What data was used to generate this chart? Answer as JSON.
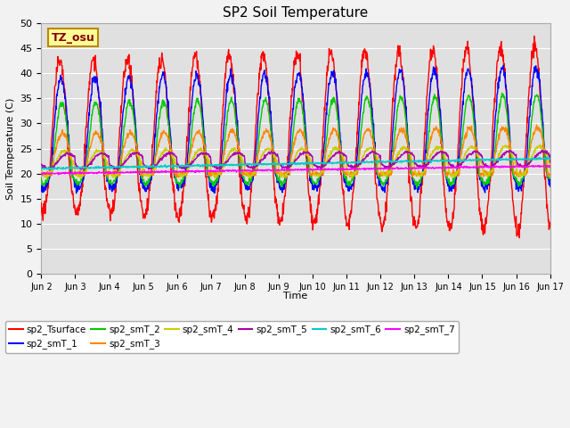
{
  "title": "SP2 Soil Temperature",
  "xlabel": "Time",
  "ylabel": "Soil Temperature (C)",
  "ylim": [
    0,
    50
  ],
  "xlim": [
    0,
    360
  ],
  "xtick_labels": [
    "Jun 2",
    "Jun 3",
    "Jun 4",
    "Jun 5",
    "Jun 6",
    "Jun 7",
    "Jun 8",
    "Jun 9",
    "Jun 10",
    "Jun 11",
    "Jun 12",
    "Jun 13",
    "Jun 14",
    "Jun 15",
    "Jun 16",
    "Jun 17"
  ],
  "annotation_text": "TZ_osu",
  "annotation_box_color": "#FFFF99",
  "annotation_box_edge": "#BB8800",
  "annotation_text_color": "#880000",
  "background_color": "#E0E0E0",
  "grid_color": "#FFFFFF",
  "fig_facecolor": "#F2F2F2",
  "series_colors": {
    "sp2_Tsurface": "#FF0000",
    "sp2_smT_1": "#0000FF",
    "sp2_smT_2": "#00CC00",
    "sp2_smT_3": "#FF8800",
    "sp2_smT_4": "#CCCC00",
    "sp2_smT_5": "#AA00AA",
    "sp2_smT_6": "#00CCCC",
    "sp2_smT_7": "#FF00FF"
  }
}
